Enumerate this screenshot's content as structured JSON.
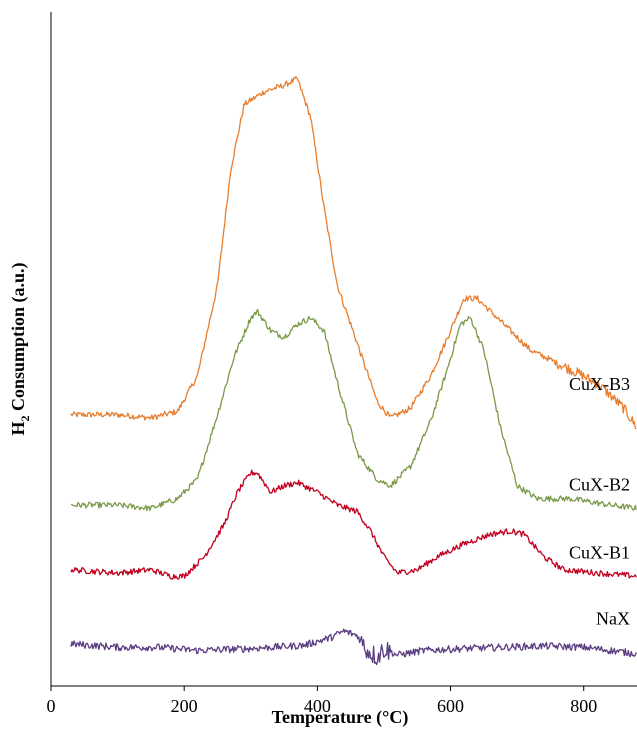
{
  "chart_data": {
    "type": "line",
    "xlabel": "Temperature  (°C)",
    "ylabel_main": "H",
    "ylabel_sub": "2",
    "ylabel_rest": " Consumption (a.u.)",
    "xlim": [
      0,
      880
    ],
    "ylim": [
      0,
      100
    ],
    "x_ticks": [
      0,
      200,
      400,
      600,
      800
    ],
    "x_tick_labels": [
      "0",
      "200",
      "400",
      "600",
      "800"
    ],
    "y_ticks_shown": false,
    "grid": false,
    "legend": "none (inline labels at right)",
    "series": [
      {
        "name": "CuX-B3",
        "color": "#E87D2E",
        "points": [
          [
            30,
            42
          ],
          [
            100,
            42
          ],
          [
            150,
            41.5
          ],
          [
            190,
            42.5
          ],
          [
            220,
            48
          ],
          [
            250,
            62
          ],
          [
            270,
            80
          ],
          [
            290,
            90
          ],
          [
            320,
            92
          ],
          [
            350,
            93
          ],
          [
            370,
            94
          ],
          [
            390,
            88
          ],
          [
            410,
            74
          ],
          [
            430,
            62
          ],
          [
            450,
            56
          ],
          [
            470,
            50
          ],
          [
            490,
            44
          ],
          [
            510,
            41.5
          ],
          [
            540,
            43
          ],
          [
            570,
            48
          ],
          [
            600,
            55
          ],
          [
            620,
            60
          ],
          [
            640,
            60
          ],
          [
            660,
            58
          ],
          [
            690,
            55
          ],
          [
            720,
            52
          ],
          [
            760,
            50
          ],
          [
            800,
            48
          ],
          [
            830,
            46
          ],
          [
            860,
            43
          ],
          [
            880,
            40
          ]
        ]
      },
      {
        "name": "CuX-B2",
        "color": "#7A9A48",
        "points": [
          [
            30,
            28
          ],
          [
            100,
            28
          ],
          [
            150,
            27.5
          ],
          [
            190,
            29
          ],
          [
            220,
            32
          ],
          [
            250,
            42
          ],
          [
            275,
            51
          ],
          [
            300,
            57
          ],
          [
            310,
            58
          ],
          [
            330,
            55
          ],
          [
            350,
            54
          ],
          [
            370,
            56
          ],
          [
            390,
            57
          ],
          [
            410,
            55
          ],
          [
            430,
            47
          ],
          [
            460,
            36
          ],
          [
            490,
            32
          ],
          [
            510,
            31
          ],
          [
            540,
            34
          ],
          [
            570,
            41
          ],
          [
            595,
            49
          ],
          [
            615,
            56
          ],
          [
            630,
            57
          ],
          [
            650,
            52
          ],
          [
            675,
            40
          ],
          [
            700,
            31
          ],
          [
            730,
            29
          ],
          [
            780,
            29
          ],
          [
            840,
            28
          ],
          [
            880,
            27.5
          ]
        ]
      },
      {
        "name": "CuX-B1",
        "color": "#C0001E",
        "points": [
          [
            30,
            18
          ],
          [
            100,
            17.5
          ],
          [
            150,
            18
          ],
          [
            180,
            17
          ],
          [
            200,
            17
          ],
          [
            230,
            20
          ],
          [
            260,
            25
          ],
          [
            280,
            30
          ],
          [
            300,
            33
          ],
          [
            310,
            33
          ],
          [
            330,
            30
          ],
          [
            350,
            31
          ],
          [
            370,
            31.5
          ],
          [
            400,
            30
          ],
          [
            430,
            28
          ],
          [
            460,
            27
          ],
          [
            480,
            24
          ],
          [
            500,
            20
          ],
          [
            520,
            17.5
          ],
          [
            550,
            18
          ],
          [
            580,
            20
          ],
          [
            620,
            22
          ],
          [
            660,
            23.5
          ],
          [
            690,
            24
          ],
          [
            710,
            23.5
          ],
          [
            740,
            20
          ],
          [
            770,
            18
          ],
          [
            820,
            17.5
          ],
          [
            880,
            17
          ]
        ]
      },
      {
        "name": "NaX",
        "color": "#5B3D82",
        "points": [
          [
            30,
            6.5
          ],
          [
            100,
            6
          ],
          [
            160,
            6
          ],
          [
            220,
            5.5
          ],
          [
            300,
            5.8
          ],
          [
            380,
            6.3
          ],
          [
            420,
            7.5
          ],
          [
            440,
            8.5
          ],
          [
            460,
            7.8
          ],
          [
            475,
            5.5
          ],
          [
            490,
            4.5
          ],
          [
            500,
            5.8
          ],
          [
            520,
            4.8
          ],
          [
            560,
            5.5
          ],
          [
            620,
            5.8
          ],
          [
            680,
            6
          ],
          [
            740,
            6.2
          ],
          [
            800,
            6
          ],
          [
            840,
            5.5
          ],
          [
            880,
            5
          ]
        ]
      }
    ]
  }
}
